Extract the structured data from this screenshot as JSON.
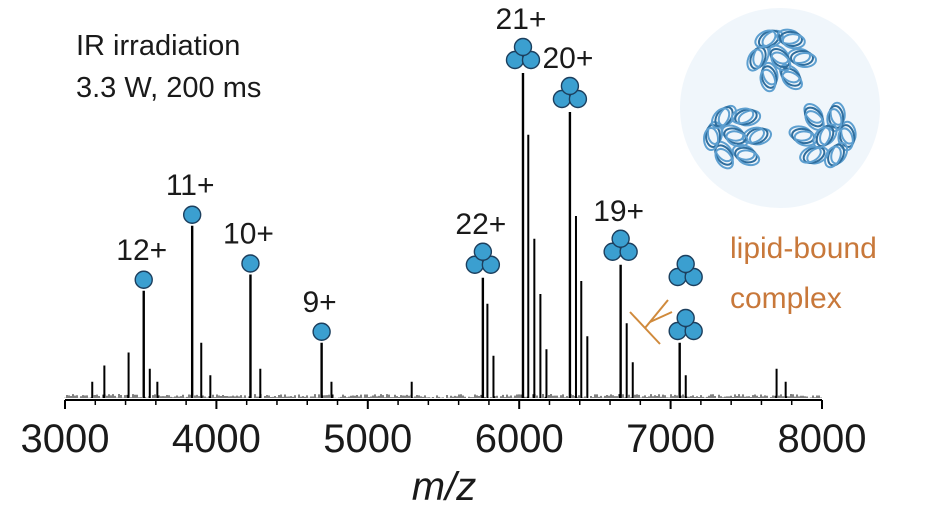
{
  "chart_data": {
    "type": "line",
    "xlabel": "m/z",
    "xlim": [
      3000,
      8000
    ],
    "xticks": [
      3000,
      4000,
      5000,
      6000,
      7000,
      8000
    ],
    "ylabel": "",
    "grid": false,
    "spectrum_color": "#000000",
    "annotations": {
      "conditions": [
        "IR irradiation",
        "3.3 W, 200 ms"
      ],
      "lipid_label": [
        "lipid-bound",
        "complex"
      ]
    },
    "peaks": [
      {
        "label": "12+",
        "mz": 3520,
        "rel_intensity": 0.33,
        "subunits": 1
      },
      {
        "label": "11+",
        "mz": 3840,
        "rel_intensity": 0.53,
        "subunits": 1
      },
      {
        "label": "10+",
        "mz": 4225,
        "rel_intensity": 0.38,
        "subunits": 1
      },
      {
        "label": "9+",
        "mz": 4695,
        "rel_intensity": 0.17,
        "subunits": 1
      },
      {
        "label": "22+",
        "mz": 5760,
        "rel_intensity": 0.37,
        "subunits": 3
      },
      {
        "label": "21+",
        "mz": 6025,
        "rel_intensity": 1.0,
        "subunits": 3
      },
      {
        "label": "20+",
        "mz": 6335,
        "rel_intensity": 0.88,
        "subunits": 3
      },
      {
        "label": "19+",
        "mz": 6670,
        "rel_intensity": 0.41,
        "subunits": 3
      }
    ],
    "lipid_bound_peak": {
      "mz": 7060,
      "rel_intensity": 0.17
    },
    "minor_peaks": [
      {
        "mz": 3180,
        "i": 0.05
      },
      {
        "mz": 3260,
        "i": 0.1
      },
      {
        "mz": 3420,
        "i": 0.14
      },
      {
        "mz": 3560,
        "i": 0.09
      },
      {
        "mz": 3610,
        "i": 0.05
      },
      {
        "mz": 3900,
        "i": 0.17
      },
      {
        "mz": 3960,
        "i": 0.07
      },
      {
        "mz": 4290,
        "i": 0.09
      },
      {
        "mz": 4760,
        "i": 0.05
      },
      {
        "mz": 5290,
        "i": 0.05
      },
      {
        "mz": 5790,
        "i": 0.29
      },
      {
        "mz": 5830,
        "i": 0.13
      },
      {
        "mz": 6060,
        "i": 0.81
      },
      {
        "mz": 6100,
        "i": 0.49
      },
      {
        "mz": 6140,
        "i": 0.32
      },
      {
        "mz": 6180,
        "i": 0.15
      },
      {
        "mz": 6375,
        "i": 0.56
      },
      {
        "mz": 6410,
        "i": 0.36
      },
      {
        "mz": 6450,
        "i": 0.19
      },
      {
        "mz": 6710,
        "i": 0.23
      },
      {
        "mz": 6750,
        "i": 0.11
      },
      {
        "mz": 7100,
        "i": 0.07
      },
      {
        "mz": 7700,
        "i": 0.09
      },
      {
        "mz": 7760,
        "i": 0.05
      }
    ],
    "marker_color": "#3b9fd0"
  }
}
